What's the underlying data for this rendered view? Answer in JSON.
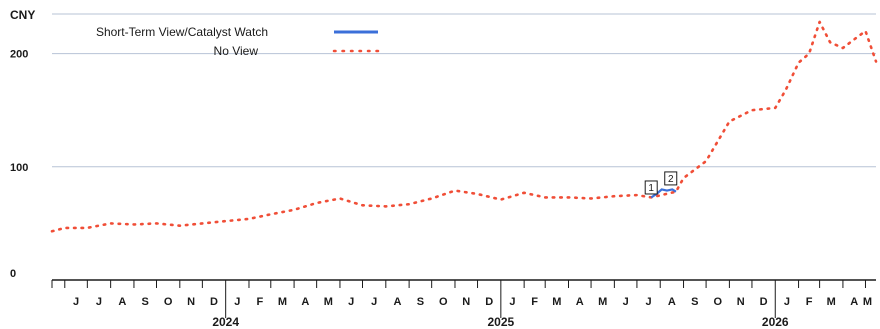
{
  "chart_data": {
    "type": "line",
    "unit_label": "CNY",
    "ylim": [
      0,
      235
    ],
    "yticks": [
      0,
      100,
      200
    ],
    "grid": true,
    "legend_position": "top-left",
    "x_start": "2023-05-15",
    "x_end": "2026-05-15",
    "month_ticks": [
      {
        "date": "2023-06-01",
        "label": "J"
      },
      {
        "date": "2023-07-01",
        "label": "J"
      },
      {
        "date": "2023-08-01",
        "label": "A"
      },
      {
        "date": "2023-09-01",
        "label": "S"
      },
      {
        "date": "2023-10-01",
        "label": "O"
      },
      {
        "date": "2023-11-01",
        "label": "N"
      },
      {
        "date": "2023-12-01",
        "label": "D"
      },
      {
        "date": "2024-01-01",
        "label": "J"
      },
      {
        "date": "2024-02-01",
        "label": "F"
      },
      {
        "date": "2024-03-01",
        "label": "M"
      },
      {
        "date": "2024-04-01",
        "label": "A"
      },
      {
        "date": "2024-05-01",
        "label": "M"
      },
      {
        "date": "2024-06-01",
        "label": "J"
      },
      {
        "date": "2024-07-01",
        "label": "J"
      },
      {
        "date": "2024-08-01",
        "label": "A"
      },
      {
        "date": "2024-09-01",
        "label": "S"
      },
      {
        "date": "2024-10-01",
        "label": "O"
      },
      {
        "date": "2024-11-01",
        "label": "N"
      },
      {
        "date": "2024-12-01",
        "label": "D"
      },
      {
        "date": "2025-01-01",
        "label": "J"
      },
      {
        "date": "2025-02-01",
        "label": "F"
      },
      {
        "date": "2025-03-01",
        "label": "M"
      },
      {
        "date": "2025-04-01",
        "label": "A"
      },
      {
        "date": "2025-05-01",
        "label": "M"
      },
      {
        "date": "2025-06-01",
        "label": "J"
      },
      {
        "date": "2025-07-01",
        "label": "J"
      },
      {
        "date": "2025-08-01",
        "label": "A"
      },
      {
        "date": "2025-09-01",
        "label": "S"
      },
      {
        "date": "2025-10-01",
        "label": "O"
      },
      {
        "date": "2025-11-01",
        "label": "N"
      },
      {
        "date": "2025-12-01",
        "label": "D"
      },
      {
        "date": "2026-01-01",
        "label": "J"
      },
      {
        "date": "2026-02-01",
        "label": "F"
      },
      {
        "date": "2026-03-01",
        "label": "M"
      },
      {
        "date": "2026-04-01",
        "label": "A"
      },
      {
        "date": "2026-05-01",
        "label": "M"
      }
    ],
    "year_labels": [
      {
        "date": "2024-01-01",
        "label": "2024"
      },
      {
        "date": "2025-01-01",
        "label": "2025"
      },
      {
        "date": "2026-01-01",
        "label": "2026"
      }
    ],
    "series": [
      {
        "name": "Short-Term View/Catalyst Watch",
        "style": "solid",
        "color": "#3b6fd9",
        "points": [
          [
            "2025-07-20",
            73
          ],
          [
            "2025-07-27",
            76
          ],
          [
            "2025-08-03",
            80
          ],
          [
            "2025-08-10",
            79
          ],
          [
            "2025-08-17",
            80
          ],
          [
            "2025-08-22",
            78
          ]
        ]
      },
      {
        "name": "No View",
        "style": "dotted",
        "color": "#f04e37",
        "points": [
          [
            "2023-05-15",
            43
          ],
          [
            "2023-06-01",
            46
          ],
          [
            "2023-07-01",
            46
          ],
          [
            "2023-08-01",
            50
          ],
          [
            "2023-09-01",
            49
          ],
          [
            "2023-10-01",
            50
          ],
          [
            "2023-11-01",
            48
          ],
          [
            "2023-12-01",
            50
          ],
          [
            "2024-01-01",
            52
          ],
          [
            "2024-02-01",
            54
          ],
          [
            "2024-03-01",
            58
          ],
          [
            "2024-04-01",
            62
          ],
          [
            "2024-05-01",
            68
          ],
          [
            "2024-06-01",
            72
          ],
          [
            "2024-07-01",
            66
          ],
          [
            "2024-08-01",
            65
          ],
          [
            "2024-09-01",
            67
          ],
          [
            "2024-10-01",
            72
          ],
          [
            "2024-11-01",
            79
          ],
          [
            "2024-12-01",
            76
          ],
          [
            "2025-01-01",
            71
          ],
          [
            "2025-02-01",
            77
          ],
          [
            "2025-03-01",
            73
          ],
          [
            "2025-04-01",
            73
          ],
          [
            "2025-05-01",
            72
          ],
          [
            "2025-06-01",
            74
          ],
          [
            "2025-07-01",
            75
          ],
          [
            "2025-07-20",
            73
          ],
          [
            "2025-08-22",
            78
          ],
          [
            "2025-09-01",
            90
          ],
          [
            "2025-10-01",
            105
          ],
          [
            "2025-11-01",
            140
          ],
          [
            "2025-12-01",
            150
          ],
          [
            "2026-01-01",
            152
          ],
          [
            "2026-01-15",
            168
          ],
          [
            "2026-02-01",
            192
          ],
          [
            "2026-02-15",
            200
          ],
          [
            "2026-03-01",
            228
          ],
          [
            "2026-03-15",
            210
          ],
          [
            "2026-04-01",
            205
          ],
          [
            "2026-04-15",
            212
          ],
          [
            "2026-05-01",
            220
          ],
          [
            "2026-05-15",
            193
          ]
        ]
      }
    ],
    "annotations": [
      {
        "label": "1",
        "date": "2025-07-20",
        "value": 76
      },
      {
        "label": "2",
        "date": "2025-08-15",
        "value": 84
      }
    ]
  }
}
